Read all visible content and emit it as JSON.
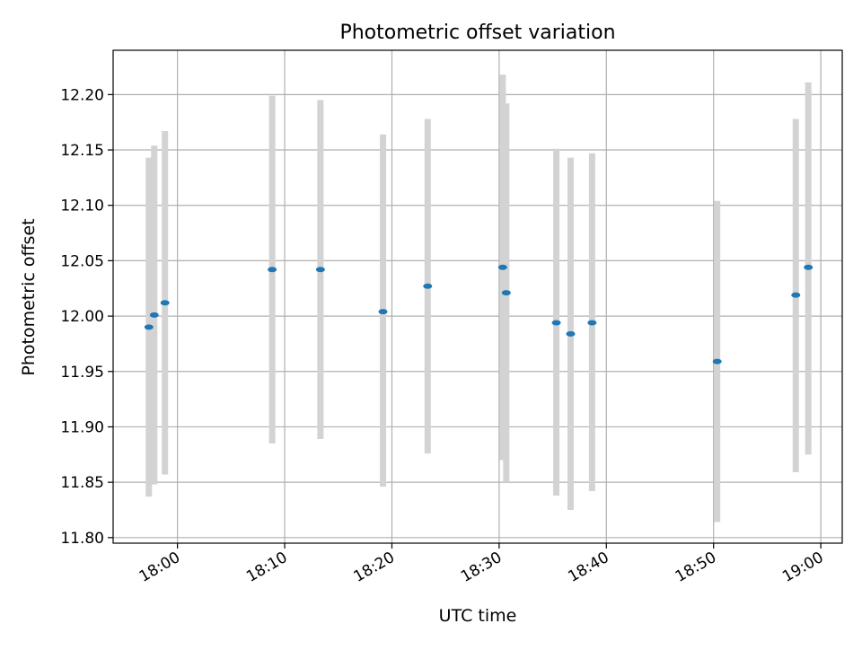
{
  "chart_data": {
    "type": "scatter",
    "title": "Photometric offset variation",
    "xlabel": "UTC time",
    "ylabel": "Photometric offset",
    "x_axis_type": "time",
    "xlim": [
      "17:54:00",
      "19:02:00"
    ],
    "ylim": [
      11.795,
      12.24
    ],
    "x_ticks": [
      "18:00",
      "18:10",
      "18:20",
      "18:30",
      "18:40",
      "18:50",
      "19:00"
    ],
    "y_ticks": [
      "11.80",
      "11.85",
      "11.90",
      "11.95",
      "12.00",
      "12.05",
      "12.10",
      "12.15",
      "12.20"
    ],
    "grid": true,
    "point_color": "#1f77b4",
    "errorbar_color": "#d3d3d3",
    "points": [
      {
        "x": "17:57:20",
        "y": 11.99,
        "ymin": 11.837,
        "ymax": 12.143
      },
      {
        "x": "17:57:50",
        "y": 12.001,
        "ymin": 11.848,
        "ymax": 12.154
      },
      {
        "x": "17:58:50",
        "y": 12.012,
        "ymin": 11.857,
        "ymax": 12.167
      },
      {
        "x": "18:08:50",
        "y": 12.042,
        "ymin": 11.885,
        "ymax": 12.199
      },
      {
        "x": "18:13:20",
        "y": 12.042,
        "ymin": 11.889,
        "ymax": 12.195
      },
      {
        "x": "18:19:10",
        "y": 12.004,
        "ymin": 11.846,
        "ymax": 12.164
      },
      {
        "x": "18:23:20",
        "y": 12.027,
        "ymin": 11.876,
        "ymax": 12.178
      },
      {
        "x": "18:30:20",
        "y": 12.044,
        "ymin": 11.87,
        "ymax": 12.218
      },
      {
        "x": "18:30:40",
        "y": 12.021,
        "ymin": 11.85,
        "ymax": 12.192
      },
      {
        "x": "18:35:20",
        "y": 11.994,
        "ymin": 11.838,
        "ymax": 12.151
      },
      {
        "x": "18:36:40",
        "y": 11.984,
        "ymin": 11.825,
        "ymax": 12.143
      },
      {
        "x": "18:38:40",
        "y": 11.994,
        "ymin": 11.842,
        "ymax": 12.147
      },
      {
        "x": "18:50:20",
        "y": 11.959,
        "ymin": 11.814,
        "ymax": 12.104
      },
      {
        "x": "18:57:40",
        "y": 12.019,
        "ymin": 11.859,
        "ymax": 12.178
      },
      {
        "x": "18:58:50",
        "y": 12.044,
        "ymin": 11.875,
        "ymax": 12.211
      }
    ]
  }
}
